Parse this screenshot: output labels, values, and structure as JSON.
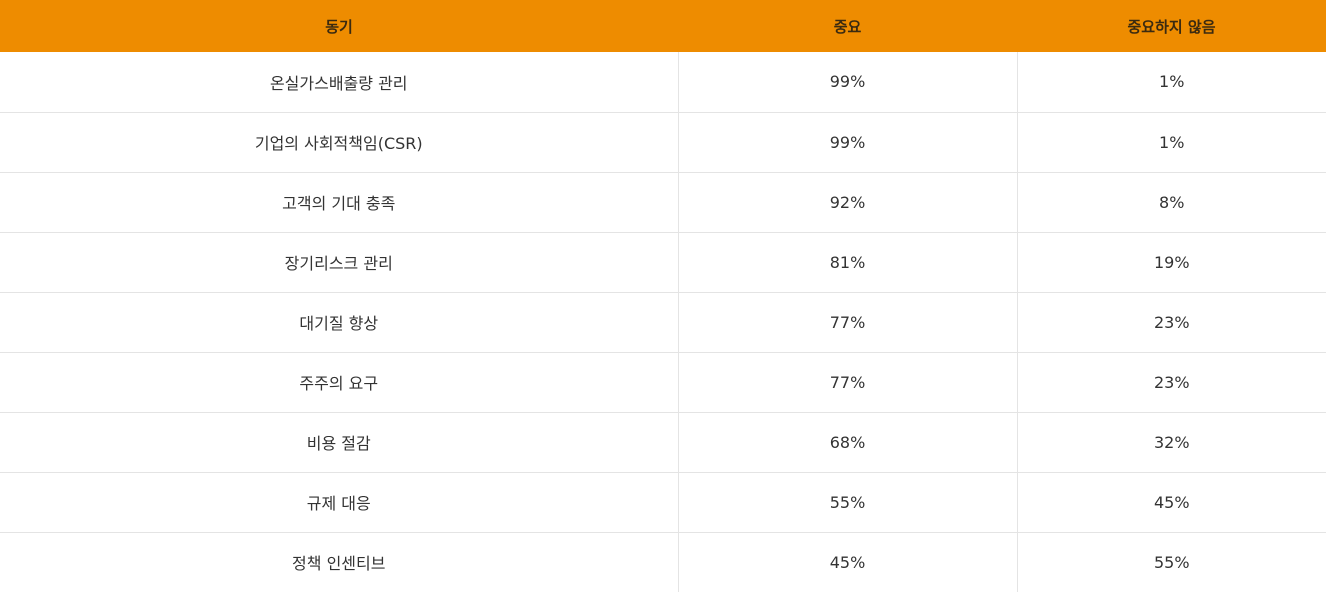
{
  "table": {
    "headers": [
      "동기",
      "중요",
      "중요하지 않음"
    ],
    "rows": [
      [
        "온실가스배출량 관리",
        "99%",
        "1%"
      ],
      [
        "기업의 사회적책임(CSR)",
        "99%",
        "1%"
      ],
      [
        "고객의 기대 충족",
        "92%",
        "8%"
      ],
      [
        "장기리스크 관리",
        "81%",
        "19%"
      ],
      [
        "대기질 향상",
        "77%",
        "23%"
      ],
      [
        "주주의 요구",
        "77%",
        "23%"
      ],
      [
        "비용 절감",
        "68%",
        "32%"
      ],
      [
        "규제 대응",
        "55%",
        "45%"
      ],
      [
        "정책 인센티브",
        "45%",
        "55%"
      ]
    ]
  },
  "colors": {
    "header_background": "#ee8c00",
    "header_text": "#3a2a10",
    "body_text": "#333333",
    "grid_line": "#e4e4e4"
  }
}
